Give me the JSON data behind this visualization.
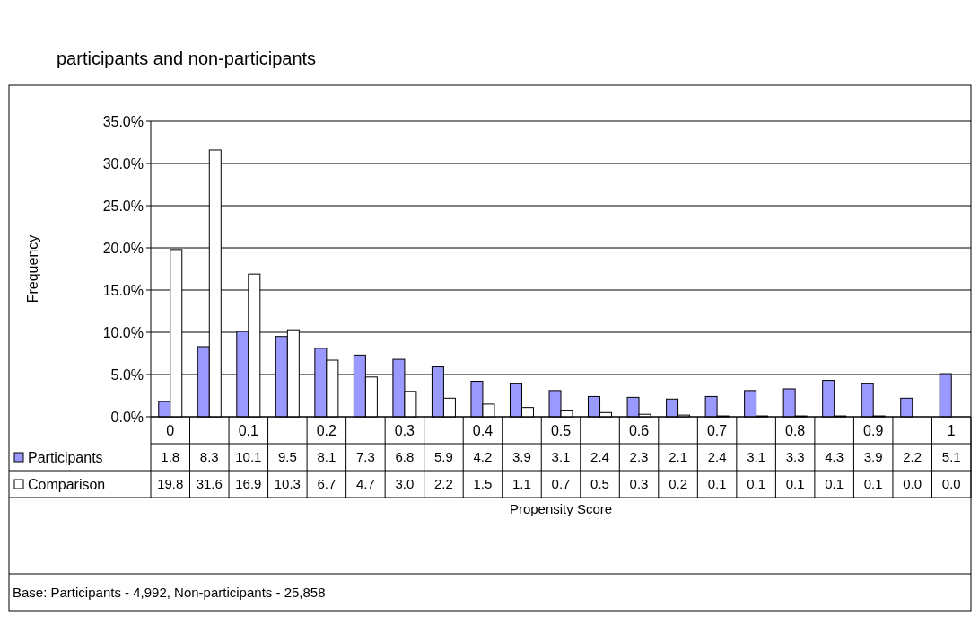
{
  "chart_data": {
    "type": "bar",
    "title": "participants and non-participants",
    "xlabel": "Propensity Score",
    "ylabel": "Frequency",
    "categories": [
      "0",
      null,
      "0.1",
      null,
      "0.2",
      null,
      "0.3",
      null,
      "0.4",
      null,
      "0.5",
      null,
      "0.6",
      null,
      "0.7",
      null,
      "0.8",
      null,
      "0.9",
      null,
      "1"
    ],
    "series": [
      {
        "name": "Participants",
        "color": "#9999ff",
        "values": [
          1.8,
          8.3,
          10.1,
          9.5,
          8.1,
          7.3,
          6.8,
          5.9,
          4.2,
          3.9,
          3.1,
          2.4,
          2.3,
          2.1,
          2.4,
          3.1,
          3.3,
          4.3,
          3.9,
          2.2,
          5.1
        ],
        "value_labels": [
          "1.8",
          "8.3",
          "10.1",
          "9.5",
          "8.1",
          "7.3",
          "6.8",
          "5.9",
          "4.2",
          "3.9",
          "3.1",
          "2.4",
          "2.3",
          "2.1",
          "2.4",
          "3.1",
          "3.3",
          "4.3",
          "3.9",
          "2.2",
          "5.1"
        ]
      },
      {
        "name": "Comparison",
        "color": "#ffffff",
        "values": [
          19.8,
          31.6,
          16.9,
          10.3,
          6.7,
          4.7,
          3.0,
          2.2,
          1.5,
          1.1,
          0.7,
          0.5,
          0.3,
          0.2,
          0.1,
          0.1,
          0.1,
          0.1,
          0.1,
          0.0,
          0.0
        ],
        "value_labels": [
          "19.8",
          "31.6",
          "16.9",
          "10.3",
          "6.7",
          "4.7",
          "3.0",
          "2.2",
          "1.5",
          "1.1",
          "0.7",
          "0.5",
          "0.3",
          "0.2",
          "0.1",
          "0.1",
          "0.1",
          "0.1",
          "0.1",
          "0.0",
          "0.0"
        ]
      }
    ],
    "ylim": [
      0,
      35
    ],
    "yticks": [
      {
        "value": 0,
        "label": "0.0%"
      },
      {
        "value": 5,
        "label": "5.0%"
      },
      {
        "value": 10,
        "label": "10.0%"
      },
      {
        "value": 15,
        "label": "15.0%"
      },
      {
        "value": 20,
        "label": "20.0%"
      },
      {
        "value": 25,
        "label": "25.0%"
      },
      {
        "value": 30,
        "label": "30.0%"
      },
      {
        "value": 35,
        "label": "35.0%"
      }
    ],
    "grid": "y",
    "legend": "bottom left",
    "annotations": [
      "Base: Participants - 4,992,  Non-participants - 25,858"
    ]
  }
}
